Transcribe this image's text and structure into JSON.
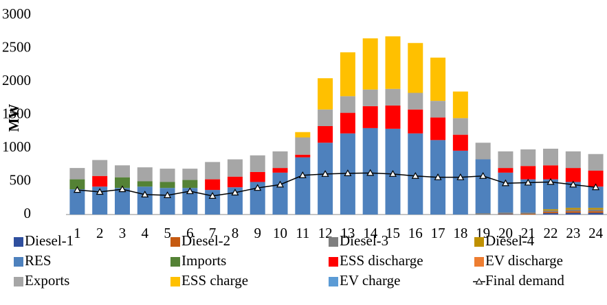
{
  "chart_data": {
    "type": "bar",
    "stacked": true,
    "ylabel": "MW",
    "categories": [
      "1",
      "2",
      "3",
      "4",
      "5",
      "6",
      "7",
      "8",
      "9",
      "10",
      "11",
      "12",
      "13",
      "14",
      "15",
      "16",
      "17",
      "18",
      "19",
      "20",
      "21",
      "22",
      "23",
      "24"
    ],
    "ylim": [
      0,
      3000
    ],
    "yticks": [
      0,
      500,
      1000,
      1500,
      2000,
      2500,
      3000
    ],
    "series": [
      {
        "name": "Diesel-1",
        "color": "#2f4f9e",
        "values": [
          0,
          0,
          0,
          0,
          0,
          0,
          0,
          0,
          0,
          0,
          0,
          0,
          0,
          0,
          0,
          0,
          0,
          0,
          0,
          5,
          0,
          20,
          25,
          25
        ]
      },
      {
        "name": "Diesel-2",
        "color": "#c55a11",
        "values": [
          0,
          0,
          0,
          0,
          0,
          0,
          0,
          0,
          0,
          0,
          0,
          0,
          0,
          0,
          0,
          0,
          0,
          0,
          0,
          5,
          10,
          20,
          25,
          25
        ]
      },
      {
        "name": "Diesel-3",
        "color": "#7f7f7f",
        "values": [
          0,
          0,
          0,
          0,
          0,
          0,
          0,
          0,
          0,
          0,
          0,
          0,
          0,
          0,
          0,
          0,
          0,
          0,
          20,
          20,
          20,
          20,
          25,
          25
        ]
      },
      {
        "name": "Diesel-4",
        "color": "#bf9000",
        "values": [
          0,
          0,
          0,
          0,
          0,
          0,
          0,
          0,
          0,
          0,
          0,
          0,
          0,
          0,
          0,
          0,
          0,
          0,
          0,
          0,
          0,
          20,
          25,
          25
        ]
      },
      {
        "name": "RES",
        "color": "#4e81bd",
        "values": [
          380,
          420,
          400,
          420,
          400,
          400,
          370,
          410,
          490,
          630,
          860,
          1080,
          1220,
          1300,
          1290,
          1220,
          1120,
          960,
          810,
          600,
          500,
          450,
          390,
          320
        ]
      },
      {
        "name": "Imports",
        "color": "#548235",
        "values": [
          150,
          0,
          160,
          80,
          90,
          120,
          0,
          0,
          0,
          0,
          0,
          0,
          0,
          0,
          0,
          0,
          0,
          0,
          0,
          0,
          0,
          0,
          0,
          0
        ]
      },
      {
        "name": "ESS discharge",
        "color": "#ff0000",
        "values": [
          0,
          160,
          0,
          0,
          0,
          0,
          160,
          160,
          150,
          70,
          40,
          250,
          310,
          330,
          350,
          360,
          340,
          240,
          0,
          70,
          200,
          210,
          210,
          240
        ]
      },
      {
        "name": "EV discharge",
        "color": "#ed7d31",
        "values": [
          0,
          0,
          0,
          0,
          0,
          0,
          0,
          0,
          0,
          0,
          0,
          0,
          0,
          0,
          0,
          0,
          0,
          0,
          0,
          0,
          0,
          0,
          0,
          0
        ]
      },
      {
        "name": "Exports",
        "color": "#a6a6a6",
        "values": [
          170,
          240,
          180,
          210,
          200,
          170,
          260,
          260,
          250,
          250,
          260,
          250,
          250,
          250,
          250,
          250,
          250,
          250,
          250,
          250,
          250,
          250,
          250,
          250
        ]
      },
      {
        "name": "ESS charge",
        "color": "#ffc000",
        "values": [
          0,
          0,
          0,
          0,
          0,
          0,
          0,
          0,
          0,
          0,
          80,
          470,
          660,
          770,
          790,
          750,
          650,
          400,
          0,
          0,
          0,
          0,
          0,
          0
        ]
      },
      {
        "name": "EV charge",
        "color": "#5b9bd5",
        "values": [
          0,
          0,
          0,
          0,
          0,
          0,
          0,
          0,
          0,
          0,
          0,
          0,
          0,
          0,
          0,
          0,
          0,
          0,
          0,
          0,
          0,
          0,
          0,
          0
        ]
      },
      {
        "name": "Final demand",
        "type": "line",
        "color": "#000000",
        "values": [
          370,
          340,
          380,
          300,
          290,
          350,
          280,
          330,
          400,
          450,
          590,
          610,
          620,
          625,
          610,
          580,
          560,
          560,
          580,
          470,
          480,
          490,
          450,
          410
        ]
      }
    ]
  }
}
